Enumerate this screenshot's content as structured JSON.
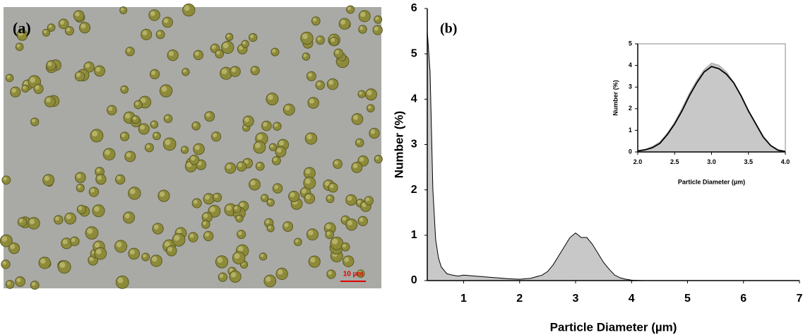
{
  "panel_a": {
    "label": "(a)",
    "scale_bar": "10 µm"
  },
  "chart_data": [
    {
      "type": "area",
      "annotation": "(b)",
      "xlabel": "Particle Diameter (µm)",
      "ylabel": "Number (%)",
      "xlim": [
        0.35,
        7
      ],
      "xticks": [
        1,
        2,
        3,
        4,
        5,
        6,
        7
      ],
      "ylim": [
        0,
        6
      ],
      "yticks": [
        0,
        1,
        2,
        3,
        4,
        5,
        6
      ],
      "x": [
        0.35,
        0.4,
        0.45,
        0.5,
        0.55,
        0.6,
        0.7,
        0.8,
        0.9,
        1.0,
        1.2,
        1.5,
        1.8,
        2.0,
        2.2,
        2.4,
        2.5,
        2.6,
        2.7,
        2.8,
        2.9,
        3.0,
        3.1,
        3.2,
        3.3,
        3.4,
        3.5,
        3.6,
        3.7,
        3.8,
        3.9,
        4.0,
        4.2,
        4.5
      ],
      "series": [
        {
          "fill": "#c8c8c8",
          "line": "#000000",
          "values": [
            5.5,
            4.6,
            2.0,
            0.9,
            0.5,
            0.3,
            0.15,
            0.12,
            0.1,
            0.12,
            0.1,
            0.07,
            0.04,
            0.03,
            0.05,
            0.12,
            0.2,
            0.35,
            0.55,
            0.75,
            0.95,
            1.05,
            0.95,
            0.95,
            0.8,
            0.6,
            0.4,
            0.25,
            0.12,
            0.06,
            0.03,
            0.01,
            0,
            0
          ]
        }
      ]
    },
    {
      "type": "area",
      "xlabel": "Particle Diameter (µm)",
      "ylabel": "Number (%)",
      "xlim": [
        2,
        4
      ],
      "xticks": [
        {
          "value": 2,
          "label": "2.0"
        },
        {
          "value": 2.5,
          "label": "2.5"
        },
        {
          "value": 3,
          "label": "3.0"
        },
        {
          "value": 3.5,
          "label": "3.5"
        },
        {
          "value": 4,
          "label": "4.0"
        }
      ],
      "ylim": [
        0,
        5
      ],
      "yticks": [
        0,
        1,
        2,
        3,
        4,
        5
      ],
      "x": [
        2.0,
        2.1,
        2.2,
        2.3,
        2.4,
        2.5,
        2.6,
        2.7,
        2.8,
        2.9,
        3.0,
        3.1,
        3.2,
        3.3,
        3.4,
        3.5,
        3.6,
        3.7,
        3.8,
        3.9,
        4.0
      ],
      "series": [
        {
          "fill": "#c8c8c8",
          "line": "#b4b4b4",
          "values": [
            0.03,
            0.1,
            0.25,
            0.45,
            0.85,
            1.35,
            2.0,
            2.7,
            3.3,
            3.8,
            4.1,
            4.0,
            3.7,
            3.2,
            2.55,
            1.85,
            1.25,
            0.65,
            0.3,
            0.1,
            0.02
          ]
        },
        {
          "line": "#000000",
          "values": [
            0.05,
            0.1,
            0.2,
            0.4,
            0.8,
            1.3,
            1.9,
            2.6,
            3.2,
            3.7,
            3.95,
            3.85,
            3.6,
            3.2,
            2.6,
            1.9,
            1.3,
            0.7,
            0.3,
            0.08,
            0.02
          ]
        }
      ]
    }
  ]
}
